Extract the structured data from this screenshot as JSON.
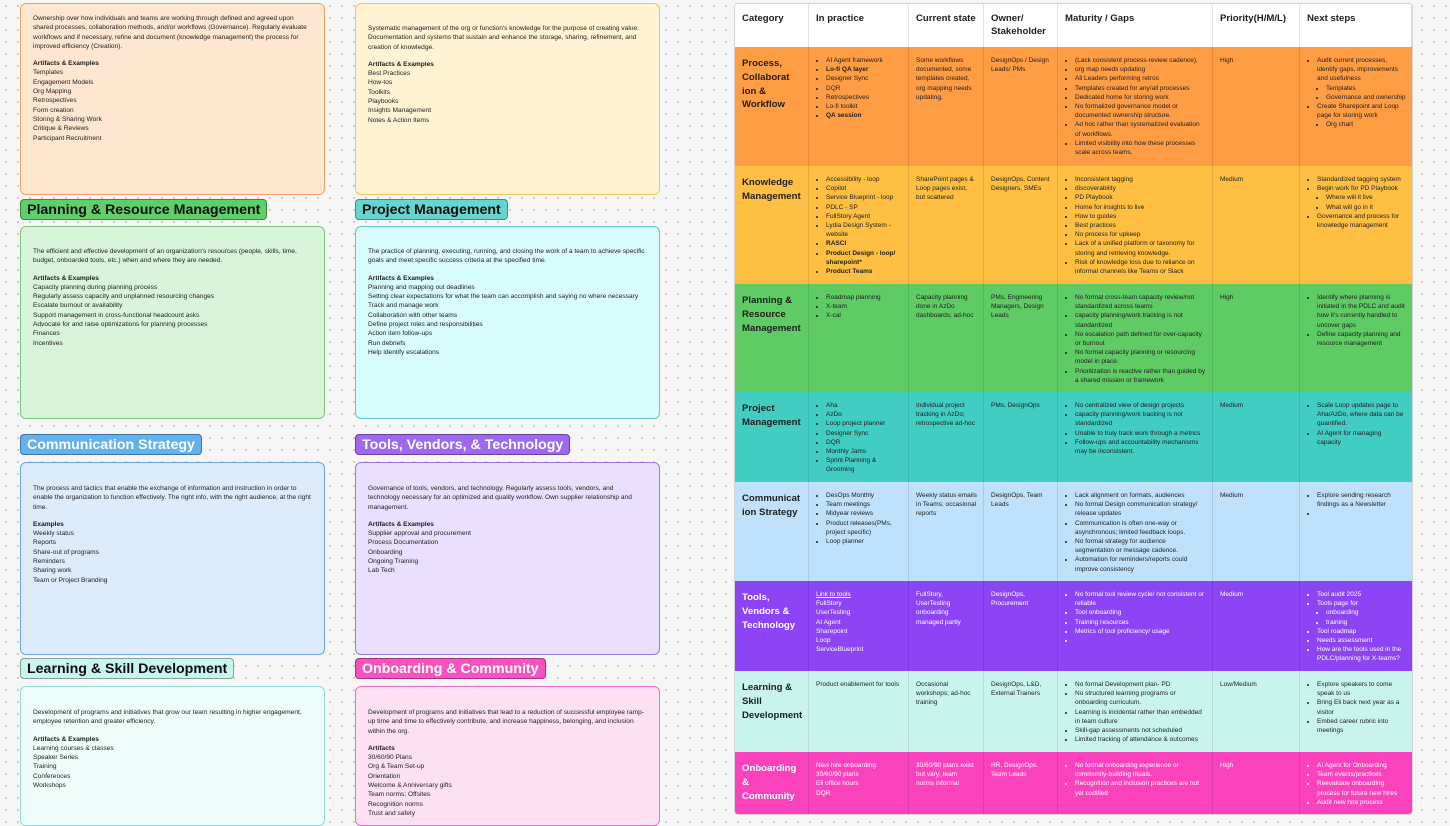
{
  "colors": {
    "peach_card": "#ffe6d0",
    "peach_border": "#f3a25f",
    "yellow_card": "#fff3d3",
    "yellow_border": "#f2c45a",
    "green_card": "#d9f5d9",
    "green_border": "#7cc87a",
    "green_title": "#5fcf69",
    "cyan_card": "#d8fbfb",
    "cyan_border": "#5fc7c7",
    "cyan_title": "#66d5cf",
    "blue_card": "#dcecfc",
    "blue_border": "#67a7e3",
    "blue_title": "#61b2ef",
    "lav_card": "#eadfff",
    "lav_border": "#9a76e6",
    "purple_title": "#9e67f4",
    "mint_card": "#eefcfa",
    "mint_border": "#8ddfd5",
    "mint_title": "#c9f4ef",
    "pink_card": "#fde1f3",
    "pink_border": "#f06cc4",
    "pink_title": "#fa50c0",
    "row_process": "#ff9d45",
    "row_knowledge": "#ffbf43",
    "row_planning": "#5fcb65",
    "row_project": "#42cdc3",
    "row_communication": "#bfe1fb",
    "row_tools": "#8c44f5",
    "row_learning": "#c9f4ed",
    "row_onboarding": "#f942bb"
  },
  "cards": {
    "governance": {
      "description": "Ownership over how individuals and teams are working through defined and agreed upon shared processes, collaboration methods, and/or workflows (Governance). Regularly evaluate workflows and if necessary, refine and document (knowledge management) the process for improved efficiency (Creation).",
      "heading": "Artifacts & Examples",
      "items": [
        "Templates",
        "Engagement Models",
        "Org Mapping",
        "Retrospectives",
        "Form creation",
        "Storing & Sharing Work",
        "Critique & Reviews",
        "Participant Recruitment"
      ]
    },
    "knowledge": {
      "description": "Systematic management of the org or function's knowledge for the purpose of creating value. Documentation and systems that sustain and enhance the storage, sharing, refinement, and creation of knowledge.",
      "heading": "Artifacts & Examples",
      "items": [
        "Best Practices",
        "How-tos",
        "Toolkits",
        "Playbooks",
        "Insights Management",
        "Notes & Action Items"
      ]
    },
    "planning": {
      "title": "Planning & Resource Management",
      "description": "The efficient and effective development of an organization's resources (people, skills, time, budget, onboarded tools, etc.) when and where they are needed.",
      "heading": "Artifacts & Examples",
      "items": [
        "Capacity planning during planning process",
        "Regularly assess capacity and unplanned resourcing changes",
        "Escalate burnout or availability",
        "Support management in cross-functional headcount asks",
        "Advocate for and raise optimizations for planning processes",
        "Finances",
        "Incentives"
      ]
    },
    "project": {
      "title": "Project Management",
      "description": "The practice of planning, executing, running, and closing the work of a team to achieve specific goals and meet specific success criteria at the specified time.",
      "heading": "Artifacts & Examples",
      "items": [
        "Planning and mapping out deadlines",
        "Setting clear expectations for what the team can accomplish and saying no where necessary",
        "Track and manage work",
        "Collaboration with other teams",
        "Define project roles and responsibilities",
        "Action item follow-ups",
        "Run debriefs",
        "Help identify escalations"
      ]
    },
    "communication": {
      "title": "Communication Strategy",
      "description": "The process and tactics that enable the exchange of information and instruction in order to enable the organization to function effectively. The right info, with the right audience, at the right time.",
      "heading": "Examples",
      "items": [
        "Weekly status",
        "Reports",
        "Share-out of programs",
        "Reminders",
        "Sharing work",
        "Team or Project Branding"
      ]
    },
    "tools": {
      "title": "Tools, Vendors, & Technology",
      "description": "Governance of tools, vendors, and technology. Regularly assess tools, vendors, and technology necessary for an optimized and quality workflow. Own supplier relationship and management.",
      "heading": "Artifacts & Examples",
      "items": [
        "Supplier approval and procurement",
        "Process Documentation",
        "Onboarding",
        "Ongoing Training",
        "Lab Tech"
      ]
    },
    "learning": {
      "title": "Learning & Skill Development",
      "description": "Development of programs and initiatives that grow our team resulting in higher engagement, employee retention and greater efficiency.",
      "heading": "Artifacts & Examples",
      "items": [
        "Learning courses & classes",
        "Speaker Series",
        "Training",
        "Conferences",
        "Workshops"
      ]
    },
    "onboarding": {
      "title": "Onboarding & Community",
      "description": "Development of programs and initiatives that lead to a reduction of successful employee ramp-up time and time to effectively contribute, and increase happiness, belonging, and inclusion within the org.",
      "heading": "Artifacts",
      "items": [
        "30/60/90 Plans",
        "Org & Team Set-up",
        "Orientation",
        "Welcome & Anniversary gifts",
        "Team norms; Offsites",
        "Recognition norms",
        "Trust and safety"
      ]
    }
  },
  "table": {
    "headers": [
      "Category",
      "In practice",
      "Current state",
      "Owner/ Stakeholder",
      "Maturity / Gaps",
      "Priority(H/M/L)",
      "Next steps"
    ],
    "rows": [
      {
        "category": "Process, Collaborat ion & Workflow",
        "practice": [
          "AI Agent framework",
          "Lo-fi QA layer",
          "Designer Sync",
          "DQR",
          "Retrospectives",
          "Lo-fi toolkit",
          "QA session"
        ],
        "current": "Some workflows documented, some templates created, org mapping needs updating,",
        "owner": "DesignOps / Design Leads/ PMs",
        "gaps": [
          "(Lack consistent process-review cadence),",
          "org map needs updating",
          "All Leaders performing retros",
          "Templates created for any/all processes",
          "Dedicated home for storing work",
          "No formalized governance model or documented ownership structure.",
          "Ad hoc rather than systematized evaluation of workflows.",
          "Limited visibility into how these processes scale across teams."
        ],
        "priority": "High",
        "next": [
          "Audit current processes, identify gaps, improvements and usefulness",
          "Templates",
          "Governance and ownership",
          "Create Sharepoint and Loop page for storing work",
          "Org chart"
        ]
      },
      {
        "category": "Knowledge Management",
        "practice": [
          "Accessibility - loop",
          "Copilot",
          "Service Blueprint - loop",
          "PDLC - SP",
          "FullStory Agent",
          "Lydia Design System - website",
          "RASCI",
          "Product Design - loop/ sharepoint*",
          "Product Teams"
        ],
        "current": "SharePoint pages & Loop pages exist, but scattered",
        "owner": "DesignOps, Content Designers, SMEs",
        "gaps": [
          "Inconsistent tagging",
          "discoverability",
          "PD Playbook",
          "Home for insights to live",
          "How to guides",
          "Best practices",
          "No process for upkeep",
          "Lack of a unified platform or taxonomy for storing and retrieving knowledge.",
          "Risk of knowledge loss due to reliance on informal channels like Teams or Slack"
        ],
        "priority": "Medium",
        "next": [
          "Standardized tagging system",
          "Begin work for PD Playbook",
          "Where will it live",
          "What will go in it",
          "Governance and process for knowledge management"
        ]
      },
      {
        "category": "Planning & Resource Management",
        "practice": [
          "Roadmap planning",
          "X-team",
          "X-cal"
        ],
        "current": "Capacity planning done in AzDo dashboards; ad-hoc",
        "owner": "PMs, Engineering Managers, Design Leads",
        "gaps": [
          "No formal cross-team capacity review/not standardized across teams",
          "capacity planning/work tracking is not standardized",
          "No escalation path defined for over-capacity or burnout",
          "No formal capacity planning or resourcing model in place.",
          "Prioritization is reactive rather than guided by a shared mission or framework"
        ],
        "priority": "High",
        "next": [
          "Identify where planning is initiated in the PDLC and audit how it's currently handled to uncover gaps",
          "Define capacity planning and resource management"
        ]
      },
      {
        "category": "Project Management",
        "practice": [
          "Aha",
          "AzDo",
          "Loop project planner",
          "Designer Sync",
          "DQR",
          "Monthly Jams",
          "Sprint Planning & Grooming"
        ],
        "current": "Individual project tracking in AzDo; retrospective ad-hoc",
        "owner": "PMs, DesignOps",
        "gaps": [
          "No centralized view of design projects",
          "capacity planning/work tracking is not standardized",
          "Unable to truly track work through a metrics",
          "Follow-ups and accountability mechanisms may be inconsistent."
        ],
        "priority": "Medium",
        "next": [
          "Scale Loop updates page to Aha/AzDo, where data can be quantified.",
          "AI Agent for managing capacity"
        ]
      },
      {
        "category": "Communicat ion Strategy",
        "practice": [
          "DesOps Monthly",
          "Team meetings",
          "Midyear reviews",
          "Product releases(PMs, project specific)",
          "Loop planner"
        ],
        "current": "Weekly status emails in Teams; occasional reports",
        "owner": "DesignOps, Team Leads",
        "gaps": [
          "Lack alignment on formats, audiences",
          "No formal Design communication strategy/ release updates",
          "Communication is often one-way or asynchronous; limited feedback loops.",
          "No formal strategy for audience segmentation or message cadence.",
          "Automation for reminders/reports could improve consistency"
        ],
        "priority": "Medium",
        "next": [
          "Explore sending research findings as a Newsletter",
          ""
        ]
      },
      {
        "category": "Tools, Vendors & Technology",
        "practice": [
          "Link to tools",
          "FullStory",
          "UserTesting",
          "AI Agent",
          "Sharepoint",
          "Loop",
          "ServiceBlueprint"
        ],
        "current": "FullStory, UserTesting onboarding managed partly",
        "owner": "DesignOps, Procurement",
        "gaps": [
          "No formal tool review cycle/ not consistent or reliable",
          "Tool onboarding",
          "Training resources",
          "Metrics of tool proficiency/ usage",
          ""
        ],
        "priority": "Medium",
        "next": [
          "Tool audit 2025",
          "Tools page for",
          "onboarding",
          "training",
          "Tool roadmap",
          "Needs assessment",
          "How are the tools used in the PDLC/planning for X-teams?"
        ]
      },
      {
        "category": "Learning & Skill Development",
        "practice": [
          "Product enablement for tools"
        ],
        "current": "Occasional workshops; ad-hoc training",
        "owner": "DesignOps, L&D, External Trainers",
        "gaps": [
          "No formal Development plan- PD",
          "No structured learning programs or onboarding curriculum.",
          "Learning is incidental rather than embedded in team culture",
          "Skill-gap assessments not scheduled",
          "Limited tracking of attendance & outcomes"
        ],
        "priority": "Low/Medium",
        "next": [
          "Explore speakers to come speak to us",
          "Bring Eli back next year as a visitor",
          "Embed career rubric into meetings"
        ]
      },
      {
        "category": "Onboarding & Community",
        "practice": [
          "New hire onboarding",
          "30/60/90 plans",
          "Eli office hours",
          "DQR"
        ],
        "current": "30/60/90 plans exist but vary; team norms informal",
        "owner": "HR, DesignOps, Team Leads",
        "gaps": [
          "No formal onboarding experience or community-building rituals.",
          "Recognition and inclusion practices are not yet codified"
        ],
        "priority": "High",
        "next": [
          "AI Agent for Onboarding",
          "Team events/practices",
          "Reevaluate onboarding process for future new hires",
          "Audit new hire process"
        ]
      }
    ]
  }
}
